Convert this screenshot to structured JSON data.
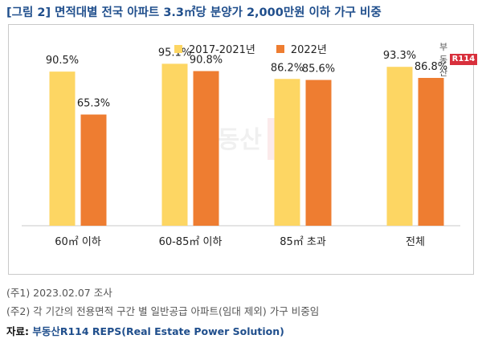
{
  "figure_title": "[그림 2] 면적대별 전국 아파트 3.3㎡당 분양가 2,000만원 이하 가구 비중",
  "watermark": {
    "brand_word": "부동산",
    "brand_box": "R114"
  },
  "chart_data": {
    "type": "bar",
    "categories": [
      "60㎡ 이하",
      "60-85㎡ 이하",
      "85㎡ 초과",
      "전체"
    ],
    "series": [
      {
        "name": "2017-2021년",
        "values": [
          90.5,
          95.1,
          86.2,
          93.3
        ],
        "labels": [
          "90.5%",
          "95.1%",
          "86.2%",
          "93.3%"
        ],
        "color": "#fdd663"
      },
      {
        "name": "2022년",
        "values": [
          65.3,
          90.8,
          85.6,
          86.8
        ],
        "labels": [
          "65.3%",
          "90.8%",
          "85.6%",
          "86.8%"
        ],
        "color": "#ee7d31"
      }
    ],
    "ylim": [
      0,
      100
    ],
    "grid": false,
    "legend_position": "top-center",
    "xlabel": "",
    "ylabel": ""
  },
  "notes": [
    "(주1) 2023.02.07 조사",
    "(주2) 각 기간의 전용면적 구간 별 일반공급 아파트(임대 제외) 가구 비중임"
  ],
  "source": {
    "prefix": "자료: ",
    "text": "부동산R114 REPS(Real Estate Power Solution)"
  }
}
